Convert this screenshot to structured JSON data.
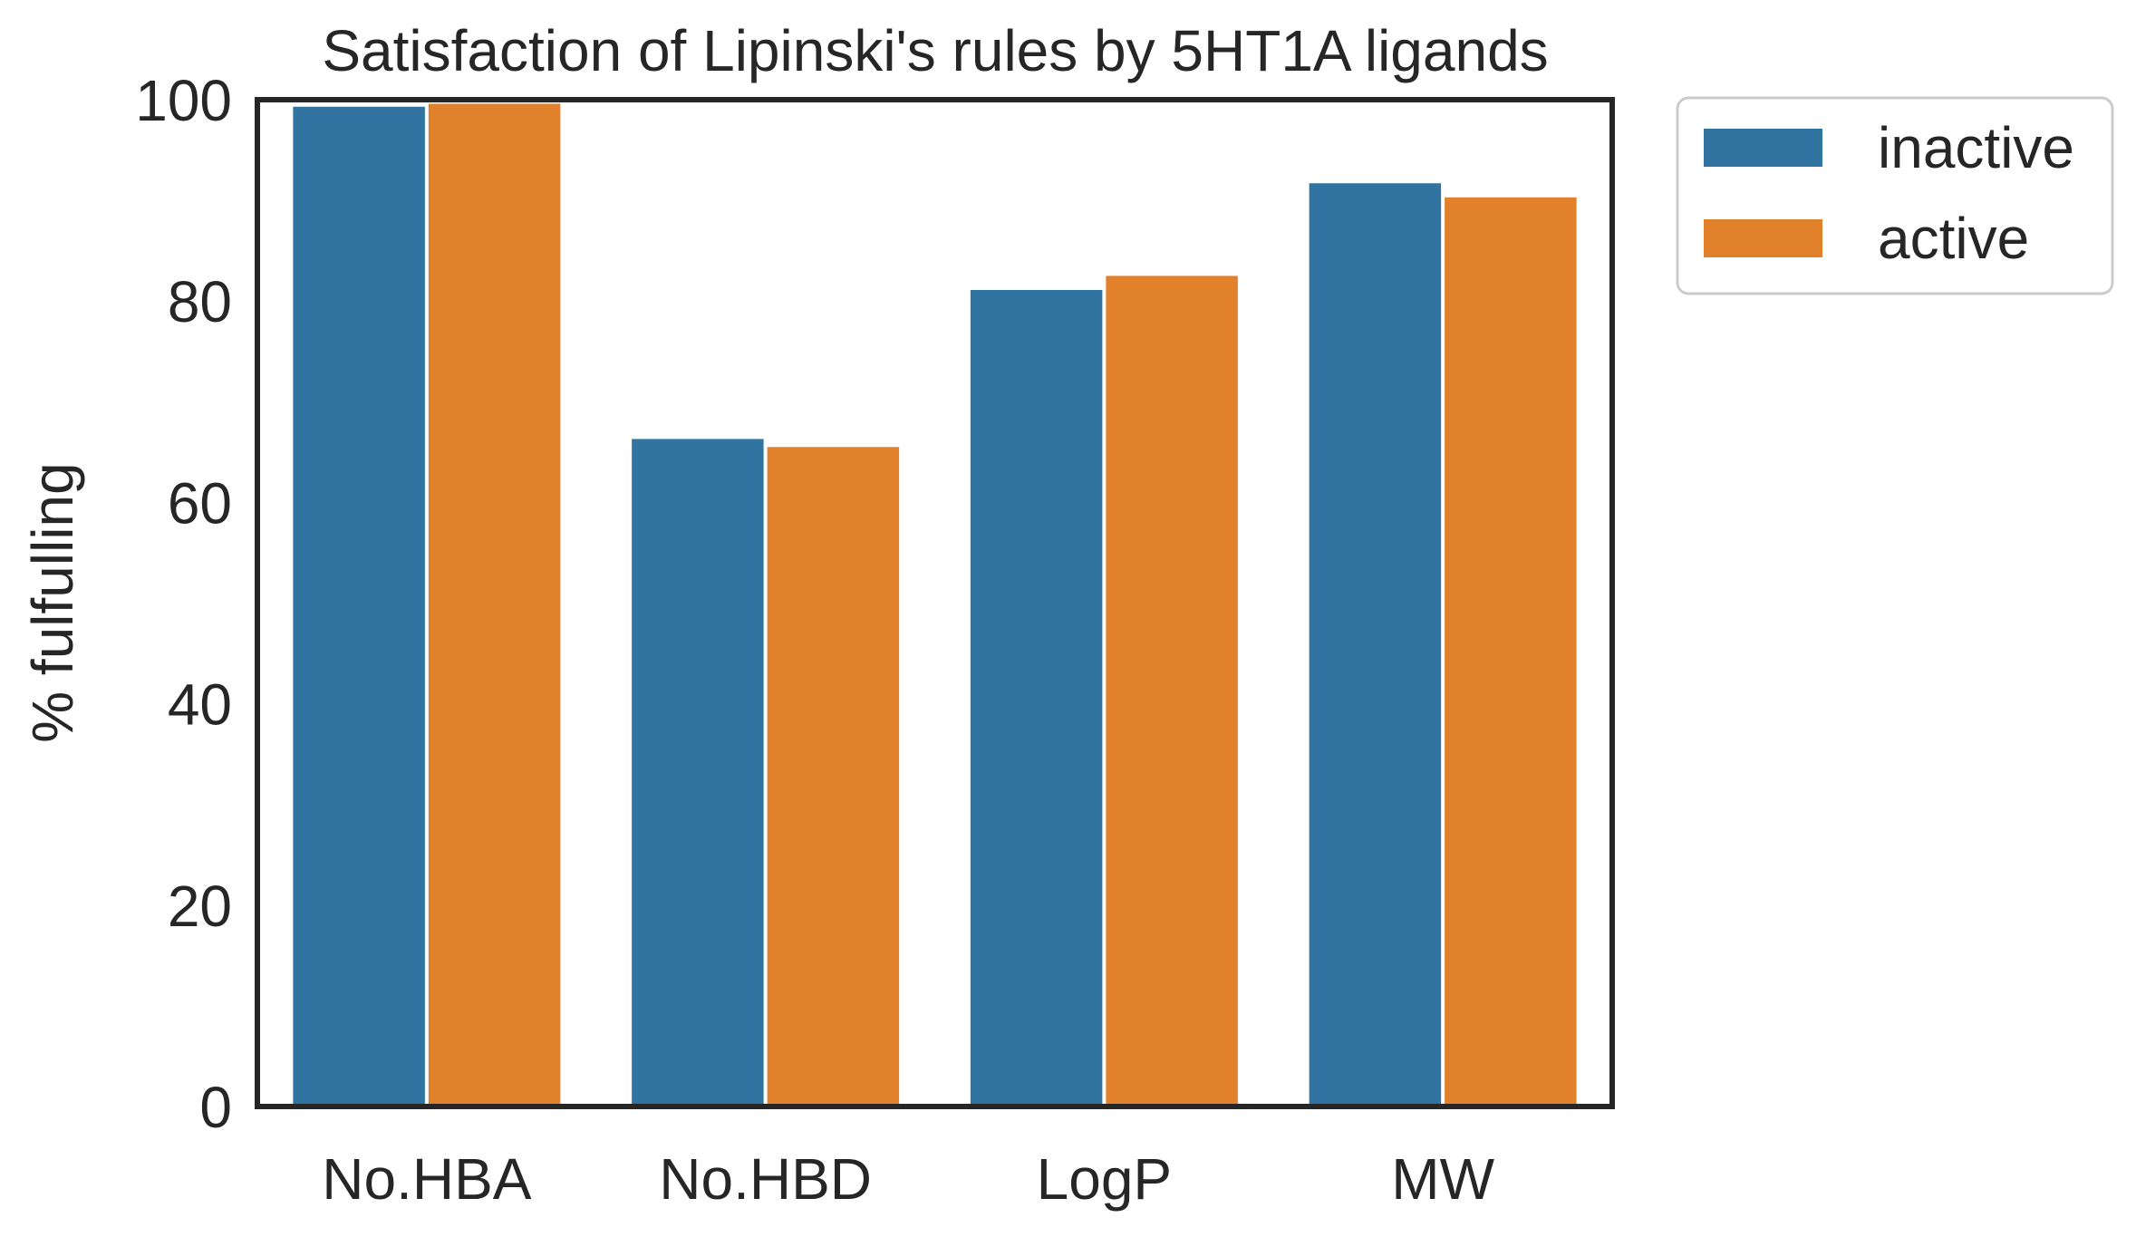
{
  "chart_data": {
    "type": "bar",
    "title": "Satisfaction of Lipinski's rules by 5HT1A ligands",
    "xlabel": "",
    "ylabel": "% fulfulling",
    "ylim": [
      0,
      100
    ],
    "yticks": [
      0,
      20,
      40,
      60,
      80,
      100
    ],
    "categories": [
      "No.HBA",
      "No.HBD",
      "LogP",
      "MW"
    ],
    "series": [
      {
        "name": "inactive",
        "color": "#3274a1",
        "values": [
          99.3,
          66.3,
          81.1,
          91.7
        ]
      },
      {
        "name": "active",
        "color": "#e1812c",
        "values": [
          99.6,
          65.5,
          82.5,
          90.3
        ]
      }
    ],
    "legend": {
      "position": "outside-right-top"
    },
    "grid": false
  }
}
